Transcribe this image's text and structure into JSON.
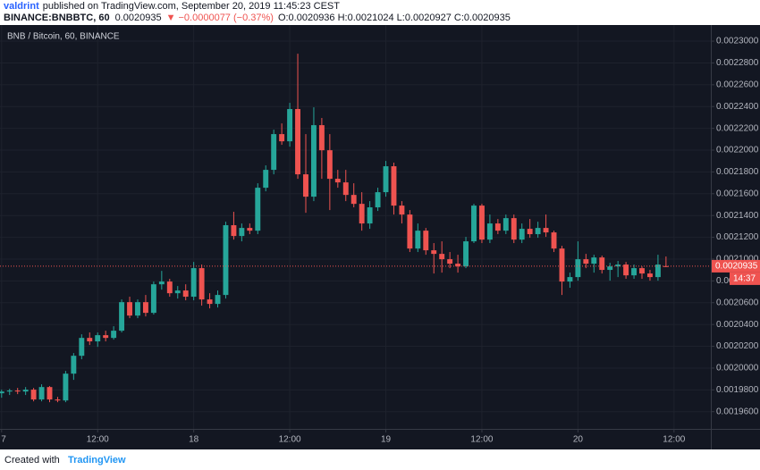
{
  "header": {
    "author": "valdrint",
    "published": "published on TradingView.com, September 20, 2019 11:45:23 CEST",
    "symbol": "BINANCE:BNBBTC, 60",
    "price": "0.0020935",
    "change": "▼ −0.0000077 (−0.37%)",
    "ohlc": "O:0.0020936 H:0.0021024 L:0.0020927 C:0.0020935"
  },
  "footer": {
    "created": "Created with",
    "brand": "TradingView"
  },
  "chart_data": {
    "type": "candlestick",
    "title": "BNB / Bitcoin, 60, BINANCE",
    "up_color": "#26a69a",
    "down_color": "#ef5350",
    "grid": true,
    "x": [
      0,
      1,
      2,
      3,
      4,
      5,
      6,
      7,
      8,
      9,
      10,
      11,
      12,
      13,
      14,
      15,
      16,
      17,
      18,
      19,
      20,
      21,
      22,
      23,
      24,
      25,
      26,
      27,
      28,
      29,
      30,
      31,
      32,
      33,
      34,
      35,
      36,
      37,
      38,
      39,
      40,
      41,
      42,
      43,
      44,
      45,
      46,
      47,
      48,
      49,
      50,
      51,
      52,
      53,
      54,
      55,
      56,
      57,
      58,
      59,
      60,
      61,
      62,
      63,
      64,
      65,
      66,
      67,
      68,
      69,
      70,
      71,
      72,
      73,
      74,
      75,
      76,
      77,
      78,
      79,
      80,
      81,
      82,
      83
    ],
    "open": [
      0.0019769,
      0.0019785,
      0.0019794,
      0.0019785,
      0.0019802,
      0.0019712,
      0.0019826,
      0.0019712,
      0.0019703,
      0.0019949,
      0.0020113,
      0.0020277,
      0.0020245,
      0.0020302,
      0.0020277,
      0.0020343,
      0.0020605,
      0.0020482,
      0.0020605,
      0.0020507,
      0.0020769,
      0.0020794,
      0.0020687,
      0.0020712,
      0.0020655,
      0.0020917,
      0.002063,
      0.0020589,
      0.0020671,
      0.0021311,
      0.0021212,
      0.0021286,
      0.0021261,
      0.0021655,
      0.0021819,
      0.0022147,
      0.0022081,
      0.0022377,
      0.0021778,
      0.0021573,
      0.0022229,
      0.0021999,
      0.0021737,
      0.0021704,
      0.0021589,
      0.0021507,
      0.0021327,
      0.0021475,
      0.0021614,
      0.0021852,
      0.0021491,
      0.0021409,
      0.0021097,
      0.0021261,
      0.0021081,
      0.0021048,
      0.0020999,
      0.0020958,
      0.0020933,
      0.0021163,
      0.0021491,
      0.0021179,
      0.0021327,
      0.0021261,
      0.0021376,
      0.0021179,
      0.0021278,
      0.0021229,
      0.0021286,
      0.0021245,
      0.0021097,
      0.0020794,
      0.0020835,
      0.0020999,
      0.0020958,
      0.0021015,
      0.0020901,
      0.0020933,
      0.002095,
      0.0020851,
      0.0020917,
      0.0020868,
      0.0020835,
      0.0020936
    ],
    "high": [
      0.0019802,
      0.001981,
      0.0019818,
      0.0019826,
      0.0019818,
      0.0019851,
      0.0019835,
      0.0019736,
      0.0019974,
      0.0020138,
      0.002031,
      0.0020327,
      0.0020327,
      0.0020343,
      0.0020384,
      0.002063,
      0.0020655,
      0.002063,
      0.0020671,
      0.0020794,
      0.0020892,
      0.0020819,
      0.0020753,
      0.0020769,
      0.0020974,
      0.002095,
      0.0020687,
      0.0020712,
      0.0021343,
      0.0021434,
      0.0021327,
      0.0021327,
      0.0021696,
      0.002186,
      0.0022188,
      0.0022245,
      0.0022434,
      0.0022885,
      0.0022147,
      0.0022393,
      0.0022295,
      0.0022147,
      0.0021819,
      0.0021819,
      0.0021696,
      0.0021614,
      0.0021532,
      0.0021655,
      0.0021901,
      0.0021885,
      0.0021532,
      0.002145,
      0.0021327,
      0.0021286,
      0.0021147,
      0.0021163,
      0.0021065,
      0.002104,
      0.0021204,
      0.0021507,
      0.0021507,
      0.0021409,
      0.0021368,
      0.0021409,
      0.0021409,
      0.0021327,
      0.0021368,
      0.0021343,
      0.0021409,
      0.0021261,
      0.0021122,
      0.0020876,
      0.0021163,
      0.0021048,
      0.002104,
      0.0021032,
      0.0020966,
      0.0020983,
      0.0020974,
      0.002095,
      0.0020933,
      0.0020901,
      0.002104,
      0.0021024
    ],
    "low": [
      0.0019728,
      0.0019753,
      0.0019761,
      0.0019753,
      0.0019695,
      0.0019695,
      0.0019687,
      0.0019687,
      0.0019687,
      0.0019892,
      0.0020081,
      0.0020212,
      0.0020195,
      0.0020245,
      0.0020261,
      0.0020327,
      0.0020458,
      0.0020458,
      0.0020474,
      0.0020491,
      0.002072,
      0.0020655,
      0.0020638,
      0.0020622,
      0.0020622,
      0.0020573,
      0.0020548,
      0.0020556,
      0.0020638,
      0.0021179,
      0.0021163,
      0.0021229,
      0.0021229,
      0.0021622,
      0.0021778,
      0.0022049,
      0.0022032,
      0.0021737,
      0.0021425,
      0.0021532,
      0.0021737,
      0.002145,
      0.0021655,
      0.0021532,
      0.0021475,
      0.0021261,
      0.0021278,
      0.0021442,
      0.0021573,
      0.0021409,
      0.0021327,
      0.0021065,
      0.0021065,
      0.002104,
      0.0020868,
      0.0020876,
      0.0020917,
      0.0020876,
      0.0020917,
      0.0021147,
      0.0021147,
      0.0021147,
      0.0021229,
      0.0021229,
      0.0021147,
      0.0021147,
      0.0021196,
      0.0021196,
      0.0021204,
      0.0021065,
      0.0020671,
      0.0020737,
      0.0020802,
      0.0020917,
      0.0020876,
      0.0020868,
      0.0020802,
      0.0020835,
      0.0020819,
      0.0020819,
      0.0020819,
      0.0020802,
      0.0020802,
      0.0020927
    ],
    "close": [
      0.0019785,
      0.0019794,
      0.0019785,
      0.0019802,
      0.0019712,
      0.0019826,
      0.0019712,
      0.0019703,
      0.0019949,
      0.0020113,
      0.0020277,
      0.0020245,
      0.0020302,
      0.0020277,
      0.0020343,
      0.0020605,
      0.0020482,
      0.0020605,
      0.0020507,
      0.0020769,
      0.0020794,
      0.0020687,
      0.0020712,
      0.0020655,
      0.0020917,
      0.002063,
      0.0020589,
      0.0020671,
      0.0021311,
      0.0021212,
      0.0021286,
      0.0021261,
      0.0021655,
      0.0021819,
      0.0022147,
      0.0022081,
      0.0022377,
      0.0021778,
      0.0021573,
      0.0022229,
      0.0021999,
      0.0021737,
      0.0021704,
      0.0021589,
      0.0021507,
      0.0021327,
      0.0021475,
      0.0021614,
      0.0021852,
      0.0021491,
      0.0021409,
      0.0021097,
      0.0021261,
      0.0021081,
      0.0021048,
      0.0020999,
      0.0020958,
      0.0020933,
      0.0021163,
      0.0021491,
      0.0021179,
      0.0021327,
      0.0021261,
      0.0021376,
      0.0021179,
      0.0021278,
      0.0021229,
      0.0021286,
      0.0021245,
      0.0021097,
      0.0020794,
      0.0020835,
      0.0020999,
      0.0020958,
      0.0021015,
      0.0020901,
      0.0020933,
      0.002095,
      0.0020851,
      0.0020917,
      0.0020868,
      0.0020835,
      0.002095,
      0.0020935
    ],
    "last_price": 0.0020935,
    "last_price_label": "0.0020935",
    "countdown": "14:37",
    "xlim": [
      -0.2,
      88.6
    ],
    "xticks": [
      {
        "value": 0,
        "label": "7"
      },
      {
        "value": 12,
        "label": "12:00"
      },
      {
        "value": 24,
        "label": "18"
      },
      {
        "value": 36,
        "label": "12:00"
      },
      {
        "value": 48,
        "label": "19"
      },
      {
        "value": 60,
        "label": "12:00"
      },
      {
        "value": 72,
        "label": "20"
      },
      {
        "value": 84,
        "label": "12:00"
      }
    ],
    "ylim": [
      0.0019442,
      0.0023148
    ],
    "yticks": [
      {
        "value": 0.00196,
        "label": "0.0019600"
      },
      {
        "value": 0.00198,
        "label": "0.0019800"
      },
      {
        "value": 0.002,
        "label": "0.0020000"
      },
      {
        "value": 0.00202,
        "label": "0.0020200"
      },
      {
        "value": 0.00204,
        "label": "0.0020400"
      },
      {
        "value": 0.00206,
        "label": "0.0020600"
      },
      {
        "value": 0.00208,
        "label": "0.0020800"
      },
      {
        "value": 0.0021,
        "label": "0.0021000"
      },
      {
        "value": 0.00212,
        "label": "0.0021200"
      },
      {
        "value": 0.00214,
        "label": "0.0021400"
      },
      {
        "value": 0.00216,
        "label": "0.0021600"
      },
      {
        "value": 0.00218,
        "label": "0.0021800"
      },
      {
        "value": 0.0022,
        "label": "0.0022000"
      },
      {
        "value": 0.00222,
        "label": "0.0022200"
      },
      {
        "value": 0.00224,
        "label": "0.0022400"
      },
      {
        "value": 0.00226,
        "label": "0.0022600"
      },
      {
        "value": 0.00228,
        "label": "0.0022800"
      },
      {
        "value": 0.0023,
        "label": "0.0023000"
      }
    ]
  }
}
